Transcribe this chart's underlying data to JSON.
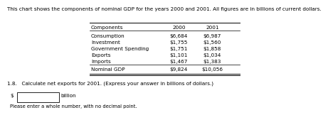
{
  "title": "This chart shows the components of nominal GDP for the years 2000 and 2001. All figures are in billions of current dollars.",
  "columns": [
    "Components",
    "2000",
    "2001"
  ],
  "rows": [
    [
      "Consumption",
      "$6,684",
      "$6,987"
    ],
    [
      "Investment",
      "$1,755",
      "$1,560"
    ],
    [
      "Government Spending",
      "$1,751",
      "$1,858"
    ],
    [
      "Exports",
      "$1,101",
      "$1,034"
    ],
    [
      "Imports",
      "$1,467",
      "$1,383"
    ]
  ],
  "total_row": [
    "Nominal GDP",
    "$9,824",
    "$10,056"
  ],
  "question_label": "1.8.",
  "question_text": "Calculate net exports for 2001. (Express your answer in billions of dollars.)",
  "input_label": "$",
  "input_suffix": "billion",
  "note_text": "Please enter a whole number, with no decimal point.",
  "bg_color": "#ffffff",
  "text_color": "#000000",
  "font_size": 5.2,
  "title_font_size": 5.2
}
